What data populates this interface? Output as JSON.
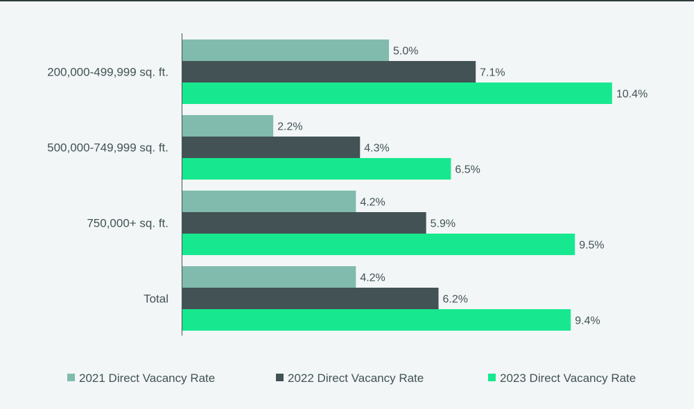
{
  "chart_data": {
    "type": "bar",
    "orientation": "horizontal",
    "categories": [
      "200,000-499,999 sq. ft.",
      "500,000-749,999 sq. ft.",
      "750,000+ sq. ft.",
      "Total"
    ],
    "series": [
      {
        "name": "2021 Direct Vacancy Rate",
        "values": [
          5.0,
          2.2,
          4.2,
          4.2
        ],
        "labels": [
          "5.0%",
          "2.2%",
          "4.2%",
          "4.2%"
        ],
        "color": "#80bbad"
      },
      {
        "name": "2022 Direct Vacancy Rate",
        "values": [
          7.1,
          4.3,
          5.9,
          6.2
        ],
        "labels": [
          "7.1%",
          "4.3%",
          "5.9%",
          "6.2%"
        ],
        "color": "#435254"
      },
      {
        "name": "2023 Direct Vacancy Rate",
        "values": [
          10.4,
          6.5,
          9.5,
          9.4
        ],
        "labels": [
          "10.4%",
          "6.5%",
          "9.5%",
          "9.4%"
        ],
        "color": "#17e88f"
      }
    ],
    "xlim": [
      0,
      12.5
    ],
    "grid": false,
    "legend_position": "bottom",
    "title": "",
    "xlabel": "",
    "ylabel": ""
  },
  "colors": {
    "background": "#f2f6f7",
    "text": "#435254",
    "axis": "#435254"
  }
}
